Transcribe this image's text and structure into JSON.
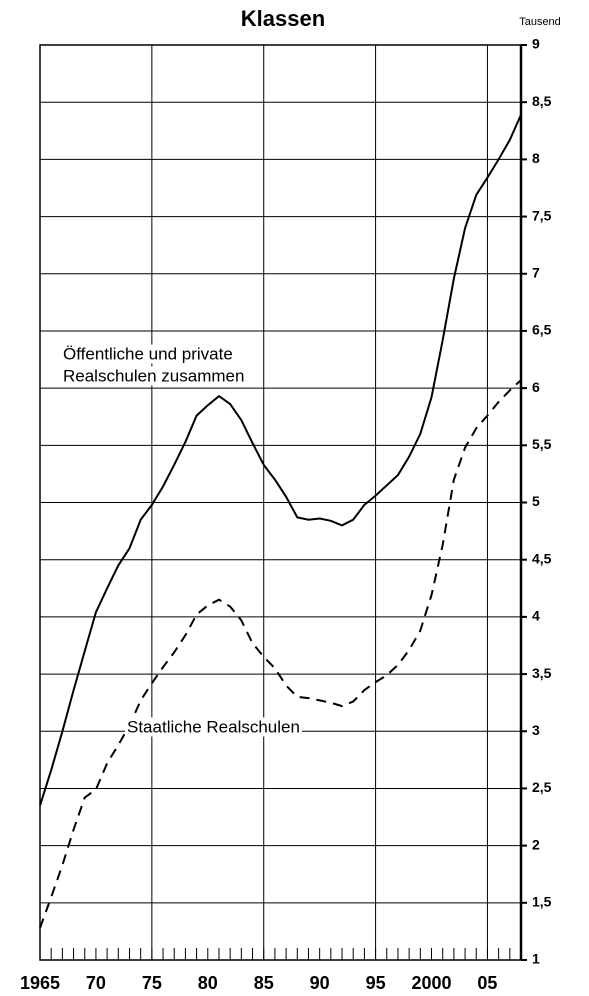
{
  "chart_data": {
    "type": "line",
    "title": "Klassen",
    "y_unit": "Tausend",
    "annotations": [
      "Öffentliche und private",
      "Realschulen zusammen",
      "Staatliche Realschulen"
    ],
    "x": [
      1965,
      1966,
      1967,
      1968,
      1969,
      1970,
      1971,
      1972,
      1973,
      1974,
      1975,
      1976,
      1977,
      1978,
      1979,
      1980,
      1981,
      1982,
      1983,
      1984,
      1985,
      1986,
      1987,
      1988,
      1989,
      1990,
      1991,
      1992,
      1993,
      1994,
      1995,
      1996,
      1997,
      1998,
      1999,
      2000,
      2001,
      2002,
      2003,
      2004,
      2005,
      2006,
      2007,
      2008
    ],
    "series": [
      {
        "color": "#000000",
        "dashed": false,
        "values": [
          2.35,
          2.66,
          3.0,
          3.36,
          3.7,
          4.04,
          4.25,
          4.45,
          4.6,
          4.85,
          4.98,
          5.14,
          5.33,
          5.53,
          5.76,
          5.85,
          5.93,
          5.86,
          5.72,
          5.52,
          5.33,
          5.2,
          5.05,
          4.87,
          4.85,
          4.86,
          4.84,
          4.8,
          4.85,
          4.98,
          5.06,
          5.15,
          5.24,
          5.4,
          5.6,
          5.92,
          6.42,
          6.96,
          7.4,
          7.69,
          7.84,
          8.0,
          8.17,
          8.39
        ]
      },
      {
        "color": "#000000",
        "dashed": true,
        "values": [
          1.28,
          1.55,
          1.83,
          2.14,
          2.42,
          2.49,
          2.72,
          2.88,
          3.05,
          3.27,
          3.42,
          3.56,
          3.69,
          3.84,
          4.02,
          4.1,
          4.15,
          4.09,
          3.97,
          3.77,
          3.65,
          3.55,
          3.4,
          3.3,
          3.29,
          3.27,
          3.25,
          3.22,
          3.26,
          3.36,
          3.43,
          3.49,
          3.58,
          3.71,
          3.88,
          4.19,
          4.63,
          5.2,
          5.48,
          5.65,
          5.76,
          5.88,
          5.98,
          6.07
        ]
      }
    ],
    "xlim": [
      1965,
      2008
    ],
    "xticks": [
      {
        "value": 1965,
        "label": "1965"
      },
      {
        "value": 1970,
        "label": "70"
      },
      {
        "value": 1975,
        "label": "75"
      },
      {
        "value": 1980,
        "label": "80"
      },
      {
        "value": 1985,
        "label": "85"
      },
      {
        "value": 1990,
        "label": "90"
      },
      {
        "value": 1995,
        "label": "95"
      },
      {
        "value": 2000,
        "label": "2000"
      },
      {
        "value": 2005,
        "label": "05"
      }
    ],
    "xgrid": [
      1975,
      1985,
      1995,
      2005
    ],
    "ylim": [
      1,
      9
    ],
    "yticks": [
      1,
      {
        "value": 1.5,
        "label": "1,5"
      },
      2,
      {
        "value": 2.5,
        "label": "2,5"
      },
      3,
      {
        "value": 3.5,
        "label": "3,5"
      },
      4,
      {
        "value": 4.5,
        "label": "4,5"
      },
      5,
      {
        "value": 5.5,
        "label": "5,5"
      },
      6,
      {
        "value": 6.5,
        "label": "6,5"
      },
      7,
      {
        "value": 7.5,
        "label": "7,5"
      },
      8,
      {
        "value": 8.5,
        "label": "8,5"
      },
      9
    ],
    "grid": true
  }
}
